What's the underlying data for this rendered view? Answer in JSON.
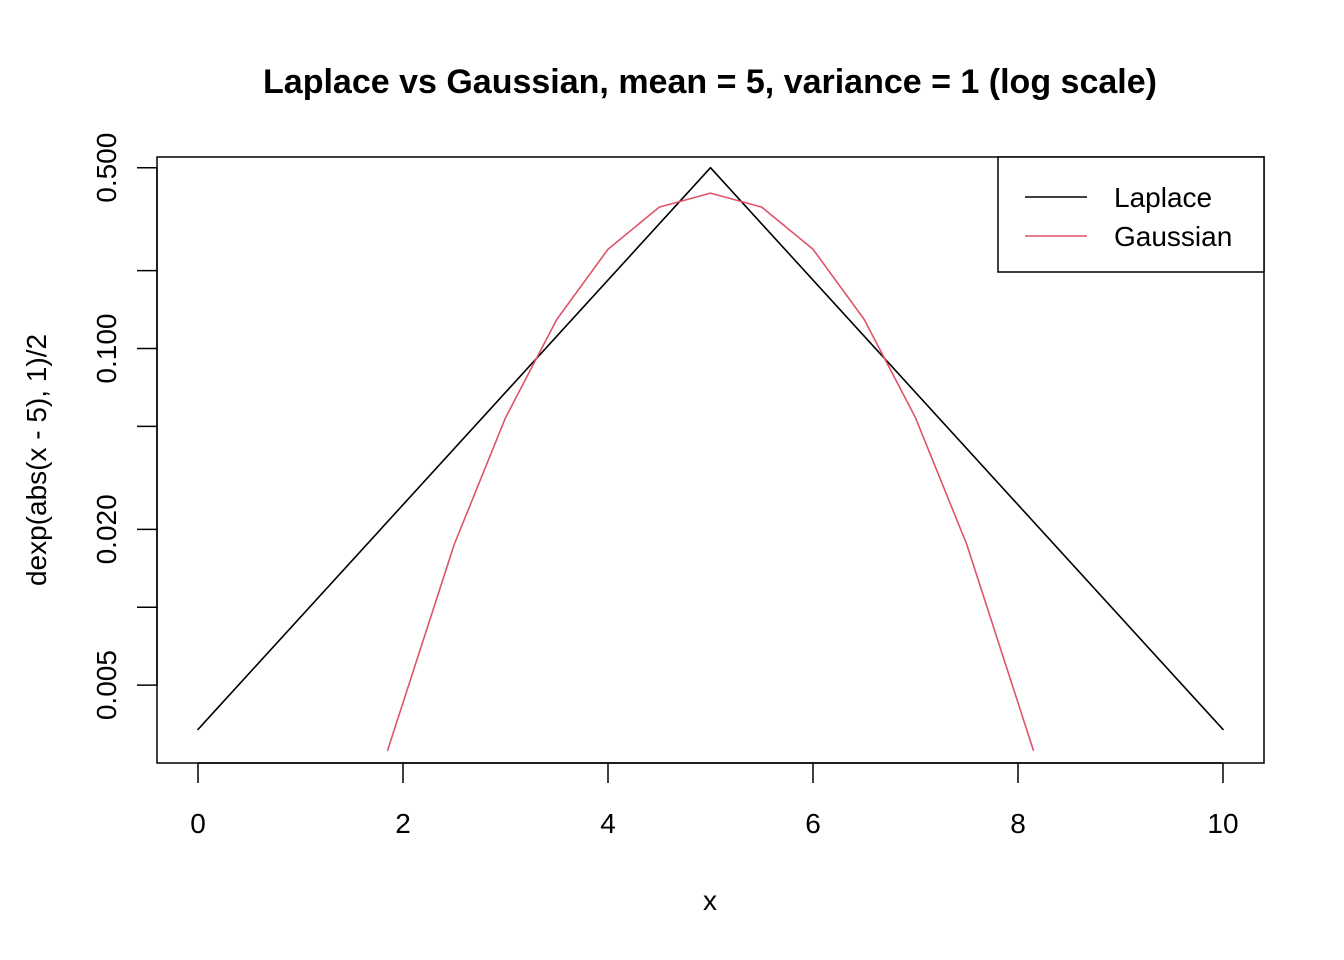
{
  "chart_data": {
    "type": "line",
    "title": "Laplace vs Gaussian, mean = 5, variance = 1 (log scale)",
    "xlabel": "x",
    "ylabel": "dexp(abs(x - 5), 1)/2",
    "xlim": [
      0,
      10
    ],
    "ylim": [
      0.0025,
      0.55
    ],
    "y_scale": "log",
    "x_ticks": [
      0,
      2,
      4,
      6,
      8,
      10
    ],
    "x_tick_labels": [
      "0",
      "2",
      "4",
      "6",
      "8",
      "10"
    ],
    "y_ticks": [
      0.005,
      0.01,
      0.02,
      0.05,
      0.1,
      0.2,
      0.5
    ],
    "y_tick_labels": [
      "0.005",
      "",
      "0.020",
      "",
      "0.100",
      "",
      "0.500"
    ],
    "grid": false,
    "legend_position": "top-right",
    "series": [
      {
        "name": "Laplace",
        "color": "#000000",
        "x": [
          0,
          5,
          10
        ],
        "y": [
          0.00337,
          0.5,
          0.00337
        ]
      },
      {
        "name": "Gaussian",
        "color": "#DF536B",
        "x": [
          1.85,
          2.5,
          3.0,
          3.5,
          4.0,
          4.5,
          5.0,
          5.5,
          6.0,
          6.5,
          7.0,
          7.5,
          8.15
        ],
        "y": [
          0.0028,
          0.0175,
          0.054,
          0.1295,
          0.242,
          0.352,
          0.3989,
          0.352,
          0.242,
          0.1295,
          0.054,
          0.0175,
          0.0028
        ]
      }
    ]
  }
}
